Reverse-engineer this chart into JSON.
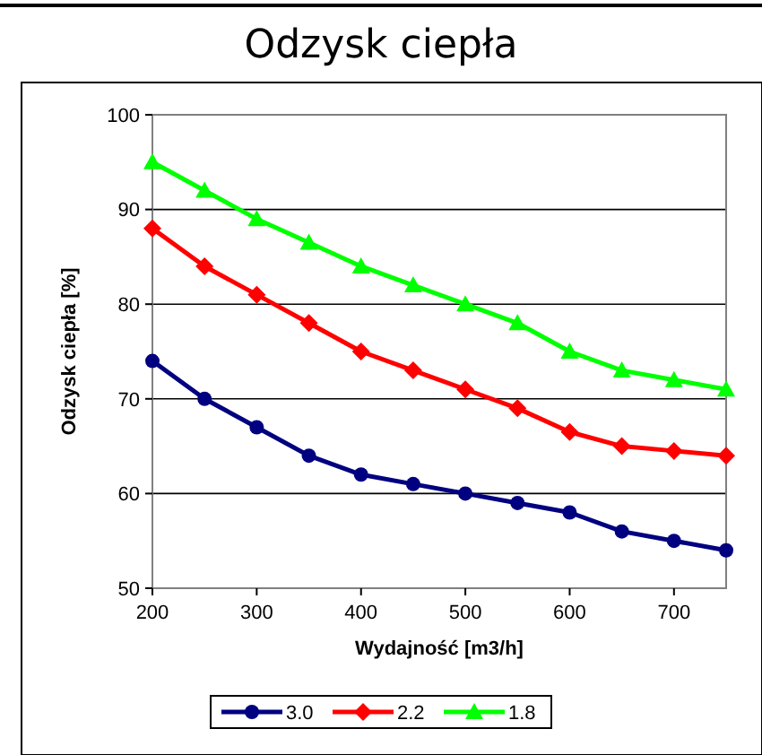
{
  "chart_data": {
    "type": "line",
    "title": "Odzysk ciepła",
    "xlabel": "Wydajność [m3/h]",
    "ylabel": "Odzysk ciepła [%]",
    "x": [
      200,
      250,
      300,
      350,
      400,
      450,
      500,
      550,
      600,
      650,
      700,
      750
    ],
    "xlim": [
      200,
      750
    ],
    "xticks": [
      200,
      300,
      400,
      500,
      600,
      700
    ],
    "ylim": [
      50,
      100
    ],
    "yticks": [
      50,
      60,
      70,
      80,
      90,
      100
    ],
    "grid": "y",
    "legend": "bottom",
    "series": [
      {
        "name": "3.0",
        "color": "#000080",
        "marker": "circle",
        "values": [
          74,
          70,
          67,
          64,
          62,
          61,
          60,
          59,
          58,
          56,
          55,
          54
        ]
      },
      {
        "name": "2.2",
        "color": "#ff0000",
        "marker": "diamond",
        "values": [
          88,
          84,
          81,
          78,
          75,
          73,
          71,
          69,
          66.5,
          65,
          64.5,
          64
        ]
      },
      {
        "name": "1.8",
        "color": "#00ff00",
        "marker": "triangle",
        "values": [
          95,
          92,
          89,
          86.5,
          84,
          82,
          80,
          78,
          75,
          73,
          72,
          71
        ]
      }
    ]
  }
}
